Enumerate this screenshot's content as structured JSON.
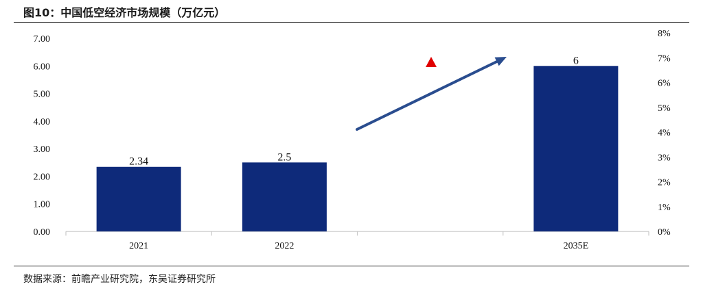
{
  "title": "图10：中国低空经济市场规模（万亿元）",
  "source": "数据来源：前瞻产业研究院，东吴证券研究所",
  "chart_data": {
    "type": "bar",
    "categories": [
      "2021",
      "2022",
      "",
      "2035E"
    ],
    "values": [
      2.34,
      2.5,
      null,
      6
    ],
    "data_labels": [
      "2.34",
      "2.5",
      "",
      "6"
    ],
    "bar_color": "#0e2a7a",
    "ylim": [
      0,
      7
    ],
    "y_ticks": [
      "0.00",
      "1.00",
      "2.00",
      "3.00",
      "4.00",
      "5.00",
      "6.00",
      "7.00"
    ],
    "y2lim": [
      0,
      8
    ],
    "y2_ticks": [
      "0%",
      "1%",
      "2%",
      "3%",
      "4%",
      "5%",
      "6%",
      "7%",
      "8%"
    ],
    "trend_arrow_color": "#2a4d8f",
    "marker_color": "#e00000",
    "grid": false,
    "xlabel": "",
    "ylabel": ""
  }
}
